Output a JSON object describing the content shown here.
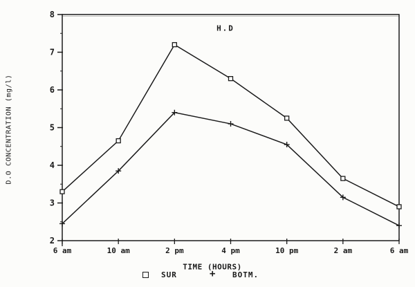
{
  "figure": {
    "background": "#fcfcfa",
    "ink": "#1a1a1a"
  },
  "chart_data": {
    "type": "line",
    "title": "H.D",
    "xlabel": "TIME (HOURS)",
    "ylabel": "D.O CONCENTRATION (mg/l)",
    "categories": [
      "6 am",
      "10 am",
      "2 pm",
      "4 pm",
      "10 pm",
      "2 am",
      "6 am"
    ],
    "series": [
      {
        "name": "SUR",
        "marker": "square",
        "values": [
          3.3,
          4.65,
          7.2,
          6.3,
          5.25,
          3.65,
          2.9
        ]
      },
      {
        "name": "BOTM.",
        "marker": "plus",
        "values": [
          2.45,
          3.85,
          5.4,
          5.1,
          4.55,
          3.15,
          2.4
        ]
      }
    ],
    "ylim": [
      2,
      8
    ],
    "yticks": [
      2,
      3,
      4,
      5,
      6,
      7,
      8
    ],
    "y_minor_step": 0.5,
    "grid": false,
    "legend_position": "bottom",
    "line_color": "#1a1a1a",
    "legend": {
      "sur_marker": "square-marker-icon",
      "botm_marker": "plus-marker-icon",
      "plus_glyph": "+"
    }
  }
}
